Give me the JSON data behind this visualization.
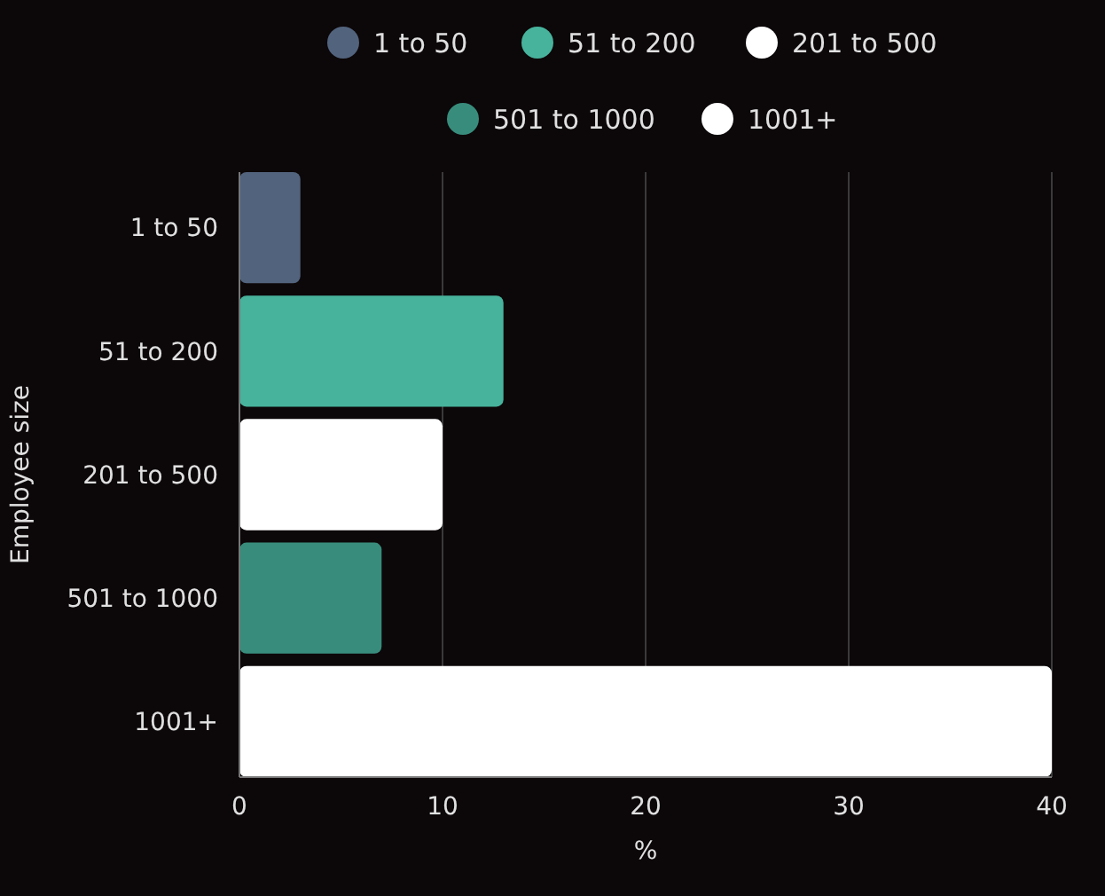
{
  "chart_data": {
    "type": "bar",
    "orientation": "horizontal",
    "ylabel": "Employee size",
    "xlabel": "%",
    "categories": [
      "1 to 50",
      "51 to 200",
      "201 to 500",
      "501 to 1000",
      "1001+"
    ],
    "series": [
      {
        "name": "1 to 50",
        "color": "#52637d",
        "values": [
          3,
          null,
          null,
          null,
          null
        ]
      },
      {
        "name": "51 to 200",
        "color": "#47b39c",
        "values": [
          null,
          13,
          null,
          null,
          null
        ]
      },
      {
        "name": "201 to 500",
        "color": "#ffffff",
        "values": [
          null,
          null,
          10,
          null,
          null
        ]
      },
      {
        "name": "501 to 1000",
        "color": "#388c7b",
        "values": [
          null,
          null,
          null,
          7,
          null
        ]
      },
      {
        "name": "1001+",
        "color": "#ffffff",
        "values": [
          null,
          null,
          null,
          null,
          40
        ]
      }
    ],
    "xlim": [
      0,
      40
    ],
    "xticks": [
      0,
      10,
      20,
      30,
      40
    ],
    "grid": "x",
    "legend": "top"
  }
}
